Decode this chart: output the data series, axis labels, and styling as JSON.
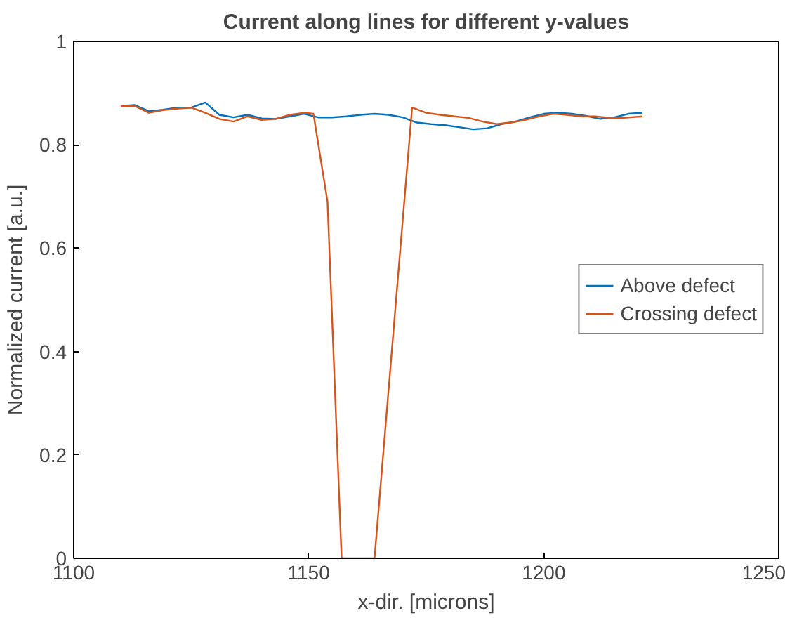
{
  "chart_data": {
    "type": "line",
    "title": "Current along lines for different y-values",
    "xlabel": "x-dir. [microns]",
    "ylabel": "Normalized current [a.u.]",
    "xlim": [
      1100,
      1250
    ],
    "ylim": [
      0,
      1
    ],
    "xticks": [
      1100,
      1150,
      1200,
      1250
    ],
    "yticks": [
      0,
      0.2,
      0.4,
      0.6,
      0.8,
      1
    ],
    "grid": false,
    "legend": "right",
    "series": [
      {
        "name": "Above defect",
        "color": "#0072bd",
        "x": [
          1110,
          1113,
          1116,
          1119,
          1122,
          1125,
          1128,
          1131,
          1134,
          1137,
          1140,
          1143,
          1146,
          1149,
          1152,
          1155,
          1158,
          1161,
          1164,
          1167,
          1170,
          1173,
          1176,
          1179,
          1182,
          1185,
          1188,
          1191,
          1194,
          1197,
          1200,
          1203,
          1206,
          1209,
          1212,
          1215,
          1218,
          1221
        ],
        "values": [
          0.875,
          0.877,
          0.865,
          0.868,
          0.872,
          0.872,
          0.882,
          0.858,
          0.853,
          0.858,
          0.851,
          0.85,
          0.855,
          0.86,
          0.853,
          0.853,
          0.855,
          0.858,
          0.86,
          0.858,
          0.853,
          0.843,
          0.84,
          0.838,
          0.834,
          0.83,
          0.832,
          0.84,
          0.845,
          0.853,
          0.86,
          0.862,
          0.86,
          0.856,
          0.85,
          0.853,
          0.86,
          0.862
        ]
      },
      {
        "name": "Crossing defect",
        "color": "#d95319",
        "x": [
          1110,
          1113,
          1116,
          1119,
          1122,
          1125,
          1128,
          1131,
          1134,
          1137,
          1140,
          1143,
          1146,
          1149,
          1151,
          1154,
          1157,
          1164,
          1172,
          1175,
          1178,
          1181,
          1184,
          1187,
          1190,
          1193,
          1196,
          1199,
          1202,
          1205,
          1208,
          1211,
          1214,
          1217,
          1221
        ],
        "values": [
          0.875,
          0.875,
          0.862,
          0.867,
          0.87,
          0.872,
          0.862,
          0.85,
          0.845,
          0.855,
          0.848,
          0.85,
          0.858,
          0.862,
          0.86,
          0.69,
          0,
          0,
          0.872,
          0.862,
          0.858,
          0.855,
          0.852,
          0.845,
          0.84,
          0.843,
          0.848,
          0.855,
          0.86,
          0.858,
          0.855,
          0.855,
          0.852,
          0.852,
          0.855
        ]
      }
    ]
  }
}
